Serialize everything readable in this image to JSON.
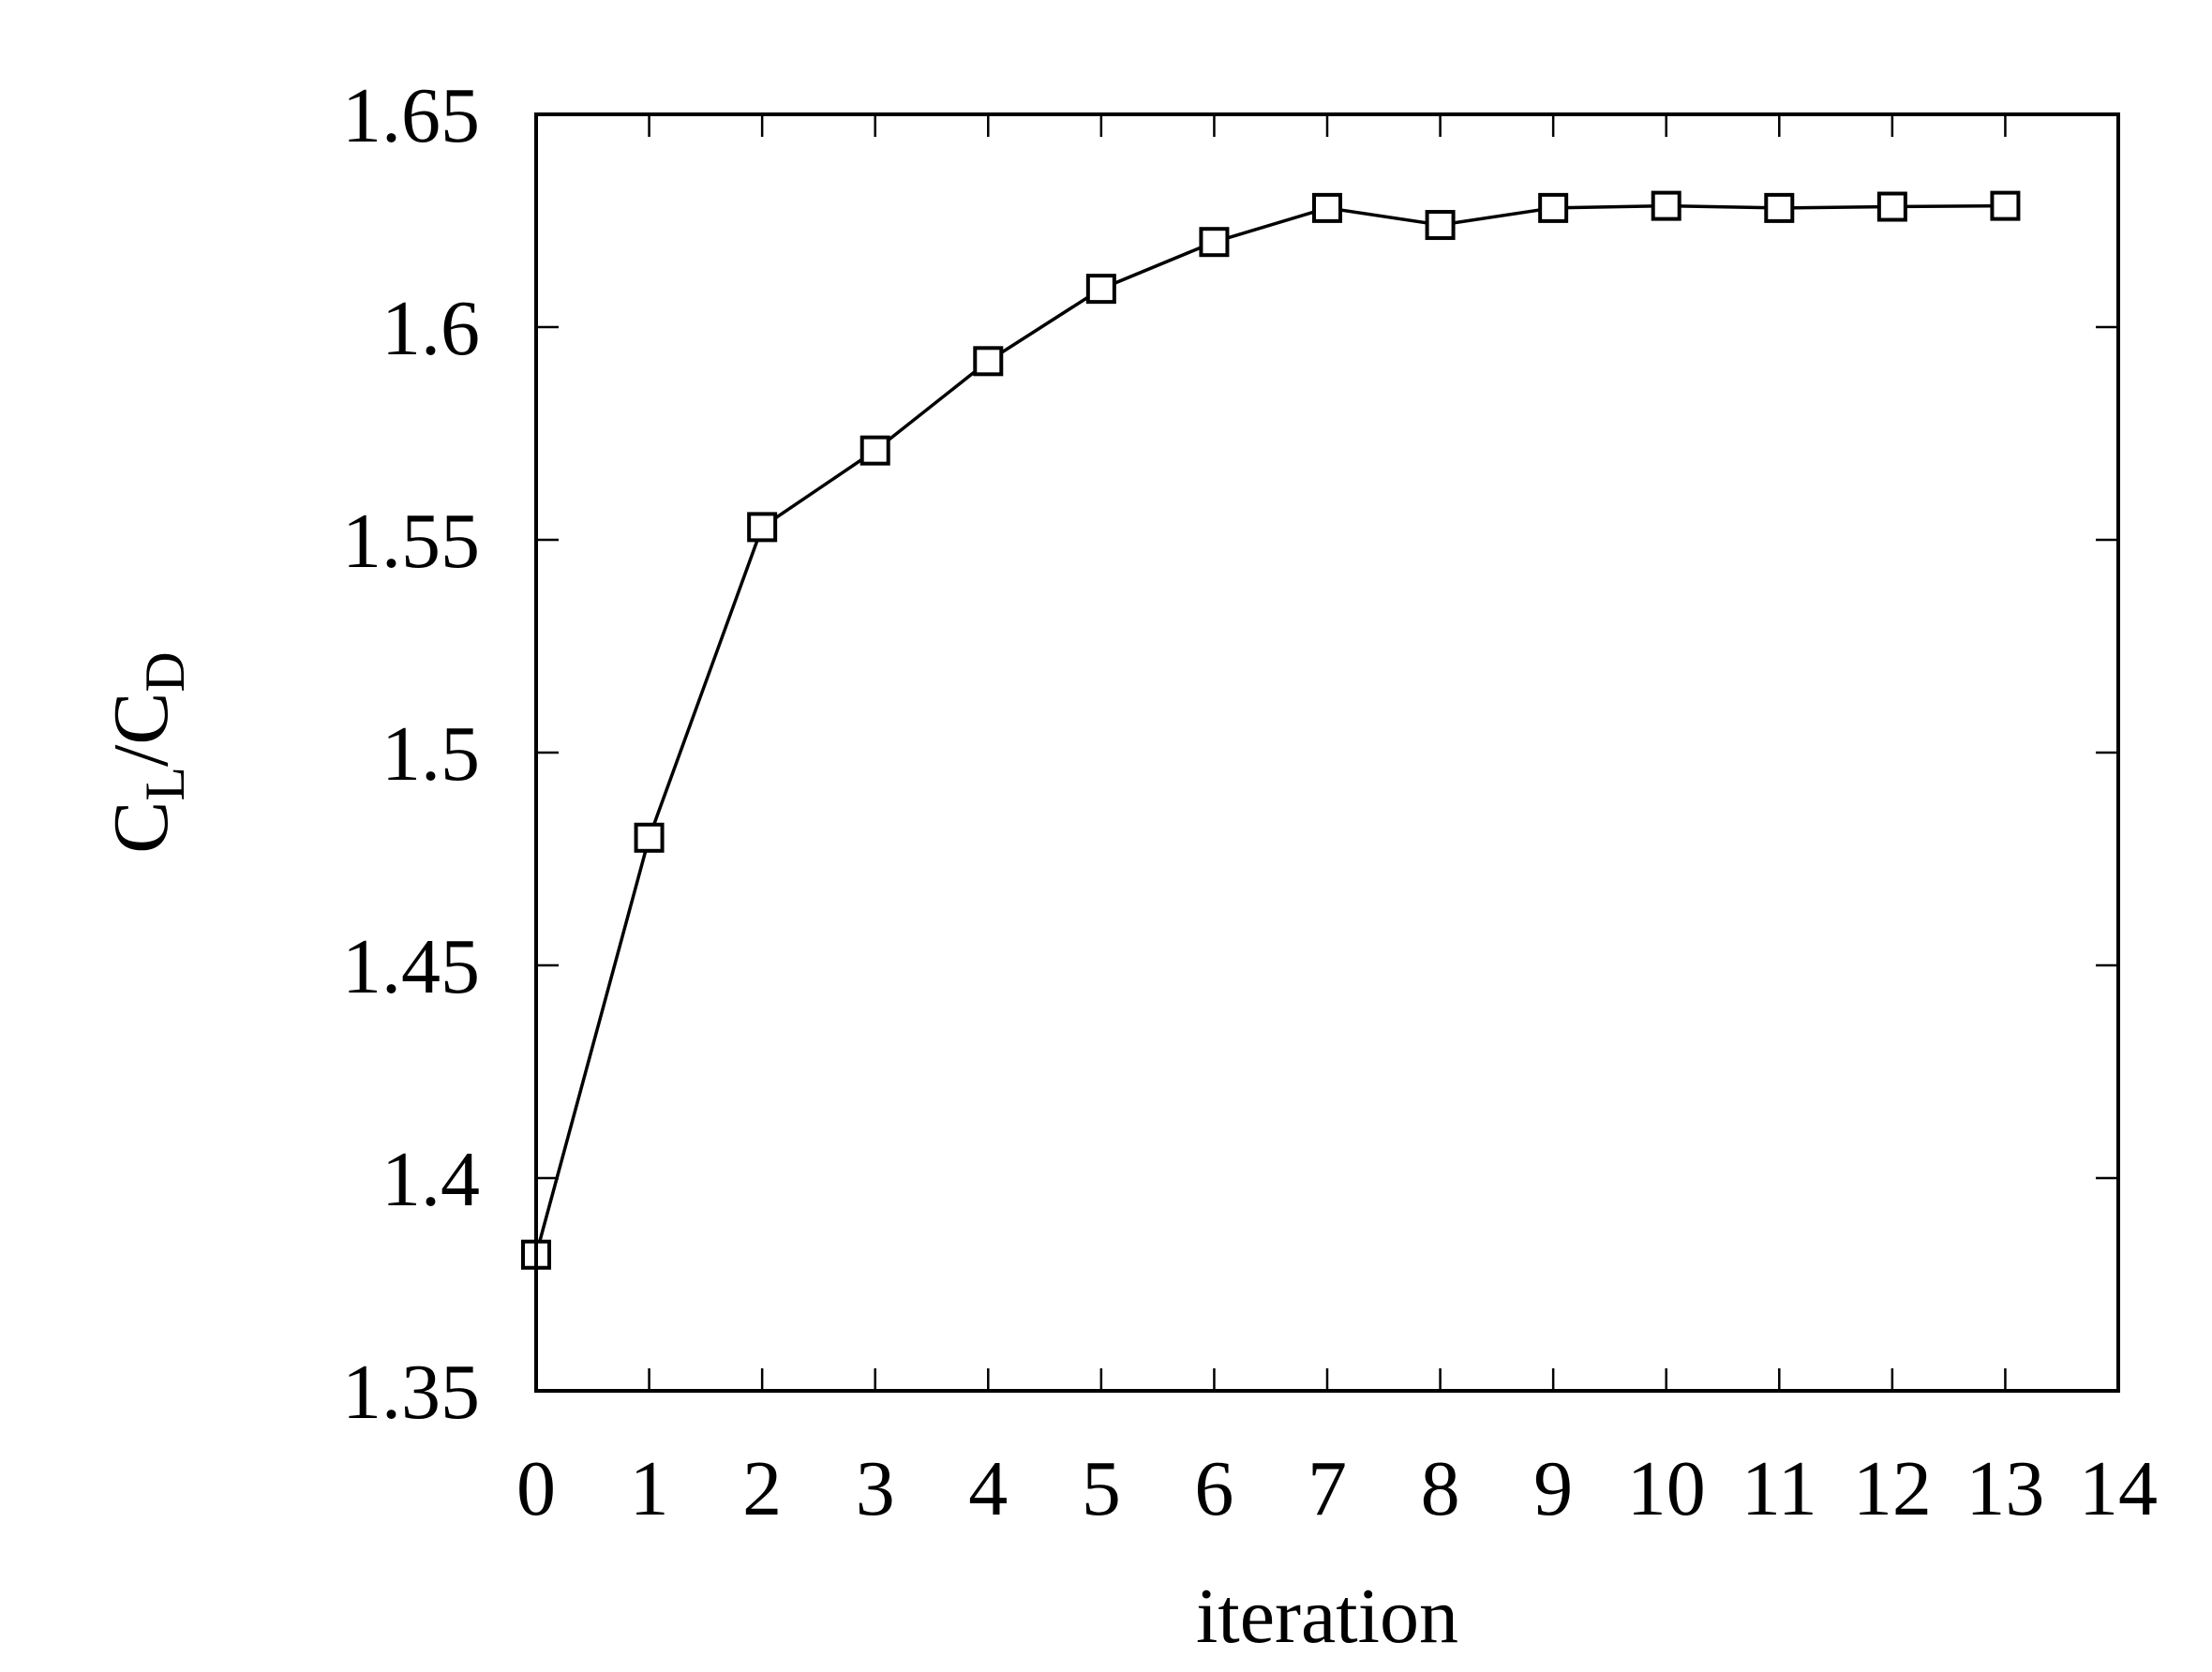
{
  "chart_data": {
    "type": "line",
    "xlabel": "iteration",
    "ylabel": {
      "parts": [
        {
          "text": "C",
          "sub": false
        },
        {
          "text": "L",
          "sub": true
        },
        {
          "text": "/C",
          "sub": false
        },
        {
          "text": "D",
          "sub": true
        }
      ]
    },
    "xlim": [
      0,
      14
    ],
    "ylim": [
      1.35,
      1.65
    ],
    "xticks": [
      0,
      1,
      2,
      3,
      4,
      5,
      6,
      7,
      8,
      9,
      10,
      11,
      12,
      13,
      14
    ],
    "xtick_labels": [
      "0",
      "1",
      "2",
      "3",
      "4",
      "5",
      "6",
      "7",
      "8",
      "9",
      "10",
      "11",
      "12",
      "13",
      "14"
    ],
    "yticks": [
      1.35,
      1.4,
      1.45,
      1.5,
      1.55,
      1.6,
      1.65
    ],
    "ytick_labels": [
      "1.35",
      "1.4",
      "1.45",
      "1.5",
      "1.55",
      "1.6",
      "1.65"
    ],
    "grid": false,
    "series": [
      {
        "marker": "square-open",
        "color": "#000000",
        "x": [
          0,
          1,
          2,
          3,
          4,
          5,
          6,
          7,
          8,
          9,
          10,
          11,
          12,
          13
        ],
        "y": [
          1.382,
          1.48,
          1.553,
          1.571,
          1.592,
          1.609,
          1.62,
          1.628,
          1.624,
          1.628,
          1.6285,
          1.628,
          1.6283,
          1.6285
        ]
      }
    ]
  }
}
